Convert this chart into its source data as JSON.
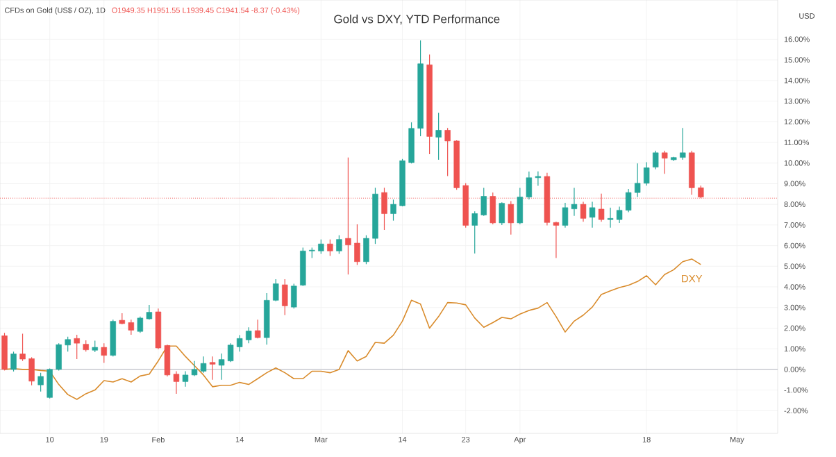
{
  "chart_data": {
    "type": "candlestick",
    "title": "Gold vs DXY, YTD Performance",
    "subtitle": "CFDs on Gold (US$ / OZ), 1D",
    "annotations": [
      "O1949.35 H1951.55 L1939.45 C1941.54 -8.37 (-0.43%)"
    ],
    "ylabel": "USD",
    "categories": [
      null,
      null,
      null,
      null,
      null,
      "10",
      null,
      null,
      null,
      null,
      null,
      "19",
      null,
      null,
      null,
      null,
      null,
      "Feb",
      null,
      null,
      null,
      null,
      null,
      null,
      null,
      null,
      "14",
      null,
      null,
      null,
      null,
      null,
      null,
      null,
      null,
      "Mar",
      null,
      null,
      null,
      null,
      null,
      null,
      null,
      null,
      "14",
      null,
      null,
      null,
      null,
      null,
      null,
      "23",
      null,
      null,
      null,
      null,
      null,
      "Apr",
      null,
      null,
      null,
      null,
      null,
      null,
      null,
      null,
      null,
      null,
      null,
      null,
      null,
      "18",
      null,
      null,
      null,
      null,
      null,
      null,
      null,
      null,
      null,
      "May"
    ],
    "ohlc": [
      [
        1.63,
        1.77,
        -0.05,
        0.0
      ],
      [
        0.0,
        0.86,
        -0.1,
        0.75
      ],
      [
        0.75,
        1.73,
        0.41,
        0.5
      ],
      [
        0.52,
        0.59,
        -0.77,
        -0.57
      ],
      [
        -0.75,
        -0.16,
        -1.07,
        -0.34
      ],
      [
        -1.36,
        0.05,
        -1.41,
        0.0
      ],
      [
        0.0,
        1.27,
        -0.05,
        1.2
      ],
      [
        1.18,
        1.59,
        0.86,
        1.45
      ],
      [
        1.5,
        1.68,
        0.5,
        1.27
      ],
      [
        1.22,
        1.41,
        0.86,
        0.95
      ],
      [
        0.93,
        1.39,
        0.84,
        1.07
      ],
      [
        1.07,
        1.27,
        0.32,
        0.68
      ],
      [
        0.68,
        2.41,
        0.63,
        2.33
      ],
      [
        2.38,
        2.72,
        2.18,
        2.22
      ],
      [
        2.27,
        2.41,
        1.68,
        1.9
      ],
      [
        1.84,
        2.56,
        1.77,
        2.49
      ],
      [
        2.45,
        3.13,
        2.41,
        2.77
      ],
      [
        2.79,
        2.95,
        0.98,
        1.04
      ],
      [
        1.16,
        1.2,
        -0.34,
        -0.27
      ],
      [
        -0.23,
        -0.09,
        -1.18,
        -0.59
      ],
      [
        -0.59,
        -0.09,
        -0.84,
        -0.27
      ],
      [
        -0.27,
        0.41,
        -0.32,
        0.0
      ],
      [
        -0.09,
        0.63,
        -0.16,
        0.29
      ],
      [
        0.34,
        0.63,
        -0.5,
        0.25
      ],
      [
        0.2,
        0.77,
        -0.5,
        0.48
      ],
      [
        0.41,
        1.27,
        0.36,
        1.18
      ],
      [
        1.09,
        1.66,
        0.86,
        1.5
      ],
      [
        1.43,
        2.04,
        1.27,
        1.86
      ],
      [
        1.88,
        2.41,
        1.5,
        1.54
      ],
      [
        1.54,
        3.7,
        1.2,
        3.35
      ],
      [
        3.35,
        4.37,
        3.3,
        4.15
      ],
      [
        4.1,
        4.37,
        2.63,
        3.08
      ],
      [
        3.02,
        4.15,
        2.95,
        4.04
      ],
      [
        4.08,
        5.9,
        4.04,
        5.74
      ],
      [
        5.74,
        5.9,
        5.4,
        5.78
      ],
      [
        5.74,
        6.3,
        5.6,
        6.08
      ],
      [
        6.08,
        6.3,
        5.5,
        5.74
      ],
      [
        5.74,
        6.5,
        5.6,
        6.3
      ],
      [
        6.35,
        10.27,
        4.6,
        6.03
      ],
      [
        6.12,
        7.03,
        5.06,
        5.22
      ],
      [
        5.22,
        6.5,
        5.1,
        6.35
      ],
      [
        6.35,
        8.8,
        6.08,
        8.5
      ],
      [
        8.57,
        8.8,
        6.76,
        7.55
      ],
      [
        7.55,
        8.23,
        7.21,
        8.0
      ],
      [
        7.93,
        10.2,
        7.9,
        10.11
      ],
      [
        10.02,
        11.97,
        9.98,
        11.68
      ],
      [
        11.68,
        15.94,
        11.3,
        14.81
      ],
      [
        14.76,
        15.26,
        10.43,
        11.29
      ],
      [
        11.25,
        12.43,
        10.16,
        11.59
      ],
      [
        11.59,
        11.7,
        9.37,
        11.07
      ],
      [
        11.07,
        11.1,
        8.7,
        8.8
      ],
      [
        8.91,
        9.02,
        6.87,
        6.98
      ],
      [
        6.98,
        7.66,
        5.62,
        7.55
      ],
      [
        7.48,
        8.8,
        7.44,
        8.39
      ],
      [
        8.39,
        8.57,
        7.03,
        7.1
      ],
      [
        7.1,
        8.1,
        7.0,
        8.05
      ],
      [
        8.0,
        8.16,
        6.53,
        7.1
      ],
      [
        7.1,
        8.8,
        7.03,
        8.35
      ],
      [
        8.35,
        9.59,
        8.23,
        9.29
      ],
      [
        9.29,
        9.6,
        8.9,
        9.35
      ],
      [
        9.35,
        9.53,
        6.98,
        7.12
      ],
      [
        7.12,
        7.16,
        5.4,
        6.98
      ],
      [
        6.98,
        8.07,
        6.87,
        7.84
      ],
      [
        7.78,
        8.8,
        7.44,
        8.0
      ],
      [
        8.0,
        8.12,
        7.16,
        7.32
      ],
      [
        7.37,
        8.12,
        6.87,
        7.84
      ],
      [
        7.77,
        8.52,
        7.16,
        7.26
      ],
      [
        7.26,
        7.84,
        6.87,
        7.32
      ],
      [
        7.26,
        7.89,
        7.1,
        7.71
      ],
      [
        7.71,
        8.75,
        7.62,
        8.57
      ],
      [
        8.57,
        9.98,
        8.35,
        9.02
      ],
      [
        9.02,
        10.04,
        8.91,
        9.77
      ],
      [
        9.8,
        10.6,
        9.7,
        10.5
      ],
      [
        10.5,
        10.6,
        9.48,
        10.23
      ],
      [
        10.16,
        10.3,
        10.1,
        10.27
      ],
      [
        10.27,
        11.7,
        10.16,
        10.5
      ],
      [
        10.5,
        10.6,
        8.46,
        8.8
      ],
      [
        8.8,
        8.91,
        8.3,
        8.35
      ],
      null,
      null,
      null,
      null
    ],
    "colors": [
      "#ef5350",
      "#26a69a",
      "#ef5350",
      "#ef5350",
      "#26a69a",
      "#26a69a",
      "#26a69a",
      "#26a69a",
      "#ef5350",
      "#ef5350",
      "#26a69a",
      "#ef5350",
      "#26a69a",
      "#ef5350",
      "#ef5350",
      "#26a69a",
      "#26a69a",
      "#ef5350",
      "#ef5350",
      "#ef5350",
      "#26a69a",
      "#26a69a",
      "#26a69a",
      "#ef5350",
      "#26a69a",
      "#26a69a",
      "#26a69a",
      "#26a69a",
      "#ef5350",
      "#26a69a",
      "#26a69a",
      "#ef5350",
      "#26a69a",
      "#26a69a",
      "#26a69a",
      "#26a69a",
      "#ef5350",
      "#26a69a",
      "#ef5350",
      "#ef5350",
      "#26a69a",
      "#26a69a",
      "#ef5350",
      "#26a69a",
      "#26a69a",
      "#26a69a",
      "#26a69a",
      "#ef5350",
      "#26a69a",
      "#ef5350",
      "#ef5350",
      "#ef5350",
      "#26a69a",
      "#26a69a",
      "#ef5350",
      "#26a69a",
      "#ef5350",
      "#26a69a",
      "#26a69a",
      "#26a69a",
      "#ef5350",
      "#ef5350",
      "#26a69a",
      "#26a69a",
      "#ef5350",
      "#26a69a",
      "#ef5350",
      "#26a69a",
      "#26a69a",
      "#26a69a",
      "#26a69a",
      "#26a69a",
      "#26a69a",
      "#ef5350",
      "#26a69a",
      "#26a69a",
      "#ef5350",
      "#ef5350",
      null,
      null,
      null,
      null
    ],
    "series": [
      {
        "name": "DXY",
        "type": "line",
        "color": "#d98b2b",
        "values": [
          0.0,
          0.04,
          0.0,
          0.0,
          -0.05,
          -0.09,
          -0.73,
          -1.22,
          -1.45,
          -1.18,
          -1.0,
          -0.54,
          -0.61,
          -0.45,
          -0.61,
          -0.32,
          -0.23,
          0.41,
          1.13,
          1.13,
          0.63,
          0.18,
          -0.27,
          -0.84,
          -0.77,
          -0.77,
          -0.63,
          -0.73,
          -0.45,
          -0.16,
          0.07,
          -0.16,
          -0.45,
          -0.45,
          -0.09,
          -0.09,
          -0.16,
          0.0,
          0.91,
          0.41,
          0.63,
          1.31,
          1.27,
          1.66,
          2.34,
          3.35,
          3.17,
          2.0,
          2.56,
          3.24,
          3.22,
          3.13,
          2.49,
          2.04,
          2.27,
          2.52,
          2.45,
          2.68,
          2.86,
          2.97,
          3.24,
          2.56,
          1.81,
          2.34,
          2.63,
          3.02,
          3.63,
          3.81,
          3.97,
          4.08,
          4.26,
          4.54,
          4.1,
          4.6,
          4.83,
          5.22,
          5.35,
          5.08,
          null,
          null,
          null,
          null
        ]
      }
    ],
    "ylim": [
      -3.1,
      17.9
    ],
    "yticks": [
      {
        "value": -2,
        "label": "-2.00%"
      },
      {
        "value": -1,
        "label": "-1.00%"
      },
      {
        "value": 0,
        "label": "0.00%"
      },
      {
        "value": 1,
        "label": "1.00%"
      },
      {
        "value": 2,
        "label": "2.00%"
      },
      {
        "value": 3,
        "label": "3.00%"
      },
      {
        "value": 4,
        "label": "4.00%"
      },
      {
        "value": 5,
        "label": "5.00%"
      },
      {
        "value": 6,
        "label": "6.00%"
      },
      {
        "value": 7,
        "label": "7.00%"
      },
      {
        "value": 8,
        "label": "8.00%"
      },
      {
        "value": 9,
        "label": "9.00%"
      },
      {
        "value": 10,
        "label": "10.00%"
      },
      {
        "value": 11,
        "label": "11.00%"
      },
      {
        "value": 12,
        "label": "12.00%"
      },
      {
        "value": 13,
        "label": "13.00%"
      },
      {
        "value": 14,
        "label": "14.00%"
      },
      {
        "value": 15,
        "label": "15.00%"
      },
      {
        "value": 16,
        "label": "16.00%"
      }
    ],
    "ref_lines": [
      {
        "axis": "y",
        "value": 0,
        "color": "#b2b5be",
        "line_style": "solid"
      },
      {
        "axis": "y",
        "value": 8.3,
        "color": "#ef5350",
        "line_style": "dotted"
      }
    ],
    "grid": true
  }
}
